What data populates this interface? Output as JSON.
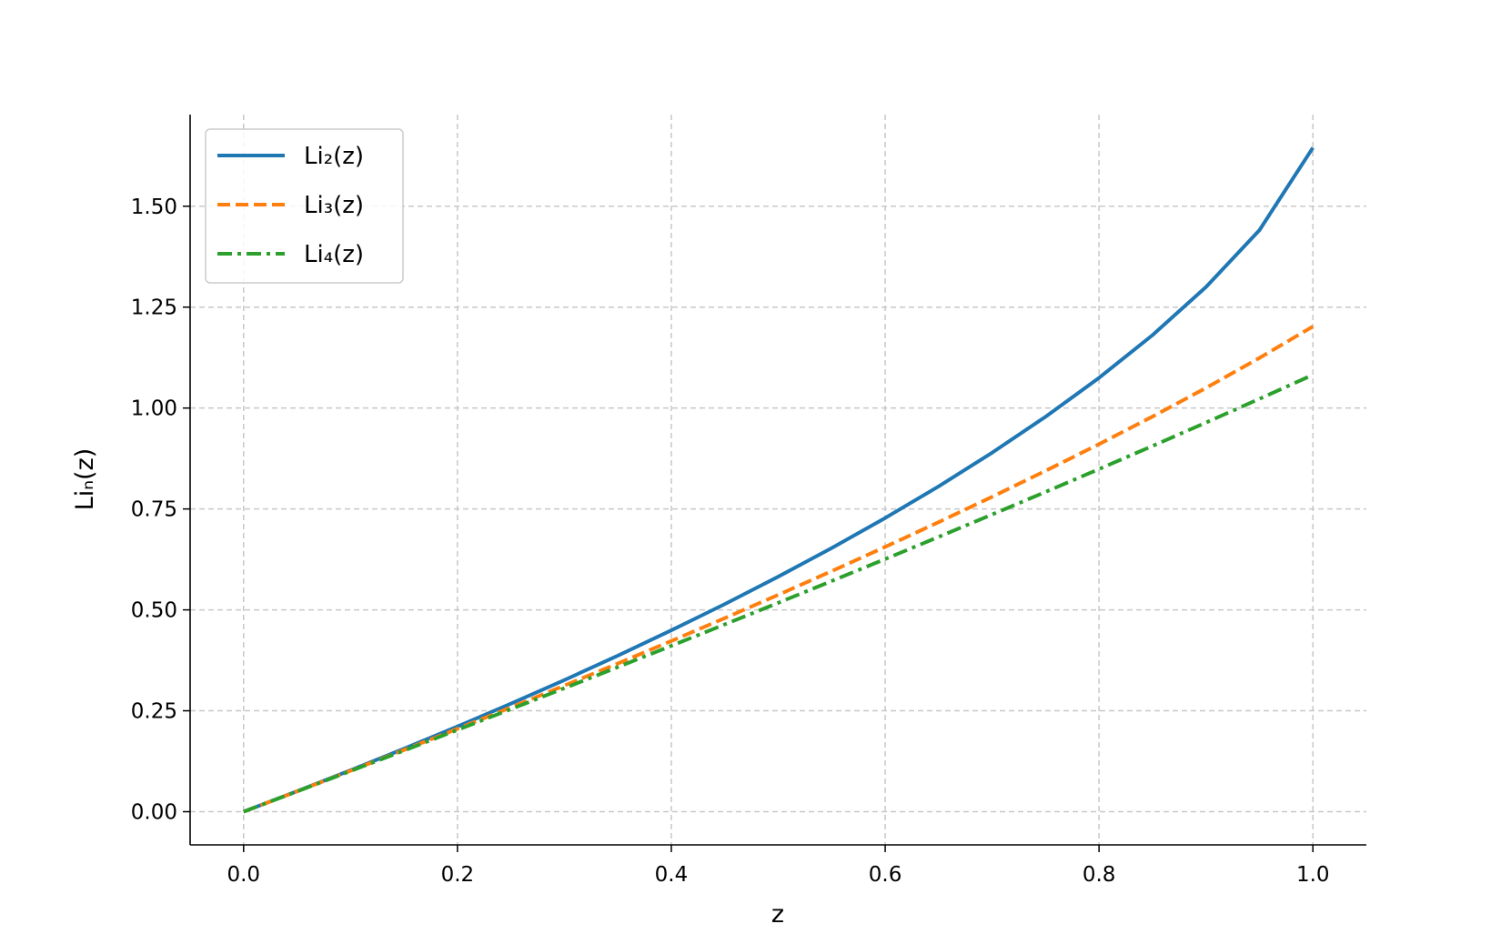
{
  "chart_data": {
    "type": "line",
    "xlabel": "z",
    "ylabel": "Liₙ(z)",
    "x": [
      0,
      0.05,
      0.1,
      0.15,
      0.2,
      0.25,
      0.3,
      0.35,
      0.4,
      0.45,
      0.5,
      0.55,
      0.6,
      0.65,
      0.7,
      0.75,
      0.8,
      0.85,
      0.9,
      0.95,
      1.0
    ],
    "series": [
      {
        "name": "Li₂(z)",
        "color": "#1f77b4",
        "linestyle": "solid",
        "values": [
          0,
          0.050639,
          0.102618,
          0.156035,
          0.211004,
          0.267653,
          0.32613,
          0.386625,
          0.449283,
          0.514319,
          0.582241,
          0.653214,
          0.727586,
          0.805873,
          0.889378,
          0.978469,
          1.074795,
          1.180632,
          1.299715,
          1.440633,
          1.644934
        ]
      },
      {
        "name": "Li₃(z)",
        "color": "#ff7f0e",
        "linestyle": "dashed",
        "values": [
          0,
          0.050316,
          0.101289,
          0.152945,
          0.205324,
          0.258462,
          0.3124,
          0.367186,
          0.422877,
          0.47953,
          0.537213,
          0.59601,
          0.656003,
          0.717307,
          0.780062,
          0.844419,
          0.910578,
          0.97884,
          1.0497,
          1.12408,
          1.202057
        ]
      },
      {
        "name": "Li₄(z)",
        "color": "#2ca02c",
        "linestyle": "dashdot",
        "values": [
          0,
          0.050157,
          0.10063,
          0.151446,
          0.202605,
          0.254116,
          0.305994,
          0.358254,
          0.41091,
          0.463979,
          0.517479,
          0.571427,
          0.625851,
          0.68077,
          0.736216,
          0.792215,
          0.848811,
          0.906043,
          0.963967,
          1.022748,
          1.082323
        ]
      }
    ],
    "xlim": [
      -0.05,
      1.05
    ],
    "ylim": [
      -0.0822,
      1.727
    ],
    "xticks": [
      {
        "value": 0,
        "label": "0.0"
      },
      {
        "value": 0.2,
        "label": "0.2"
      },
      {
        "value": 0.4,
        "label": "0.4"
      },
      {
        "value": 0.6,
        "label": "0.6"
      },
      {
        "value": 0.8,
        "label": "0.8"
      },
      {
        "value": 1.0,
        "label": "1.0"
      }
    ],
    "yticks": [
      {
        "value": 0,
        "label": "0.00"
      },
      {
        "value": 0.25,
        "label": "0.25"
      },
      {
        "value": 0.5,
        "label": "0.50"
      },
      {
        "value": 0.75,
        "label": "0.75"
      },
      {
        "value": 1.0,
        "label": "1.00"
      },
      {
        "value": 1.25,
        "label": "1.25"
      },
      {
        "value": 1.5,
        "label": "1.50"
      }
    ],
    "grid": true,
    "legend": "upper left"
  }
}
